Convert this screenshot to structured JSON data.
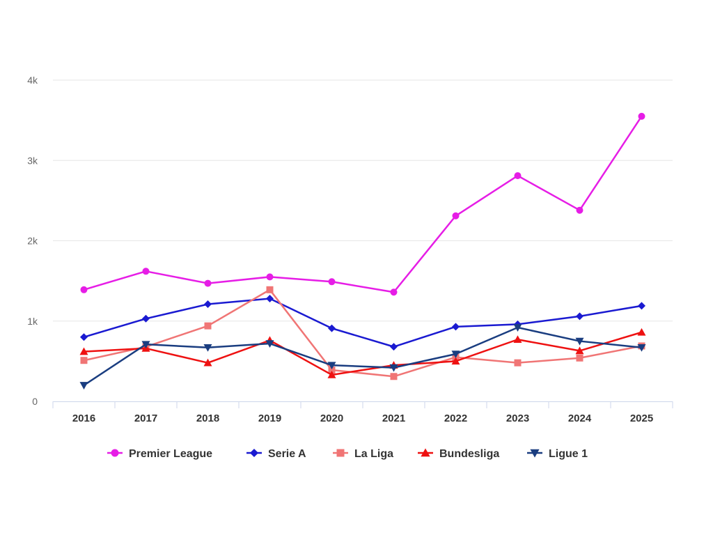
{
  "chart_data": {
    "type": "line",
    "title": "",
    "xlabel": "",
    "ylabel": "",
    "categories": [
      "2016",
      "2017",
      "2018",
      "2019",
      "2020",
      "2021",
      "2022",
      "2023",
      "2024",
      "2025"
    ],
    "ylim": [
      0,
      4000
    ],
    "y_ticks": [
      {
        "value": 0,
        "label": "0"
      },
      {
        "value": 1000,
        "label": "1k"
      },
      {
        "value": 2000,
        "label": "2k"
      },
      {
        "value": 3000,
        "label": "3k"
      },
      {
        "value": 4000,
        "label": "4k"
      }
    ],
    "grid": true,
    "legend_position": "bottom",
    "series": [
      {
        "name": "Premier League",
        "color": "#e61de6",
        "marker": "circle",
        "values": [
          1390,
          1620,
          1470,
          1550,
          1490,
          1360,
          2310,
          2810,
          2380,
          3550
        ]
      },
      {
        "name": "Serie A",
        "color": "#1a1ad1",
        "marker": "diamond",
        "values": [
          800,
          1030,
          1210,
          1280,
          910,
          680,
          930,
          960,
          1060,
          1190
        ]
      },
      {
        "name": "La Liga",
        "color": "#f07575",
        "marker": "square",
        "values": [
          510,
          680,
          940,
          1390,
          390,
          310,
          550,
          480,
          540,
          690
        ]
      },
      {
        "name": "Bundesliga",
        "color": "#ee1111",
        "marker": "triangle",
        "values": [
          620,
          660,
          480,
          760,
          330,
          450,
          500,
          770,
          630,
          860
        ]
      },
      {
        "name": "Ligue 1",
        "color": "#1a3d80",
        "marker": "triangle-down",
        "values": [
          200,
          710,
          670,
          720,
          450,
          420,
          590,
          920,
          750,
          670
        ]
      }
    ]
  }
}
